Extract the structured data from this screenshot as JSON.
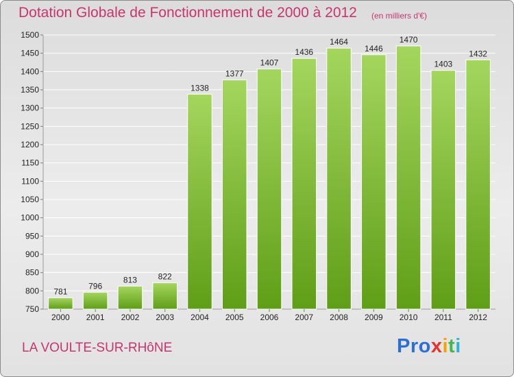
{
  "header": {
    "title": "Dotation Globale de Fonctionnement de 2000 à 2012",
    "unit": "(en milliers d'€)"
  },
  "footer": {
    "commune": "LA VOULTE-SUR-RHôNE",
    "logo": {
      "p1": "Pro",
      "p2": "x",
      "p3": "i",
      "p4": "t",
      "p5": "i"
    }
  },
  "colors": {
    "bar_top": "#a4d65e",
    "bar_bottom": "#5f9e17",
    "grid": "#ffffff",
    "accent": "#c8346e"
  },
  "chart_data": {
    "type": "bar",
    "title": "Dotation Globale de Fonctionnement de 2000 à 2012",
    "categories": [
      "2000",
      "2001",
      "2002",
      "2003",
      "2004",
      "2005",
      "2006",
      "2007",
      "2008",
      "2009",
      "2010",
      "2011",
      "2012"
    ],
    "values": [
      781,
      796,
      813,
      822,
      1338,
      1377,
      1407,
      1436,
      1464,
      1446,
      1470,
      1403,
      1432
    ],
    "ylim": [
      750,
      1500
    ],
    "yticks": [
      750,
      800,
      850,
      900,
      950,
      1000,
      1050,
      1100,
      1150,
      1200,
      1250,
      1300,
      1350,
      1400,
      1450,
      1500
    ],
    "grid": true,
    "data_labels": true
  }
}
